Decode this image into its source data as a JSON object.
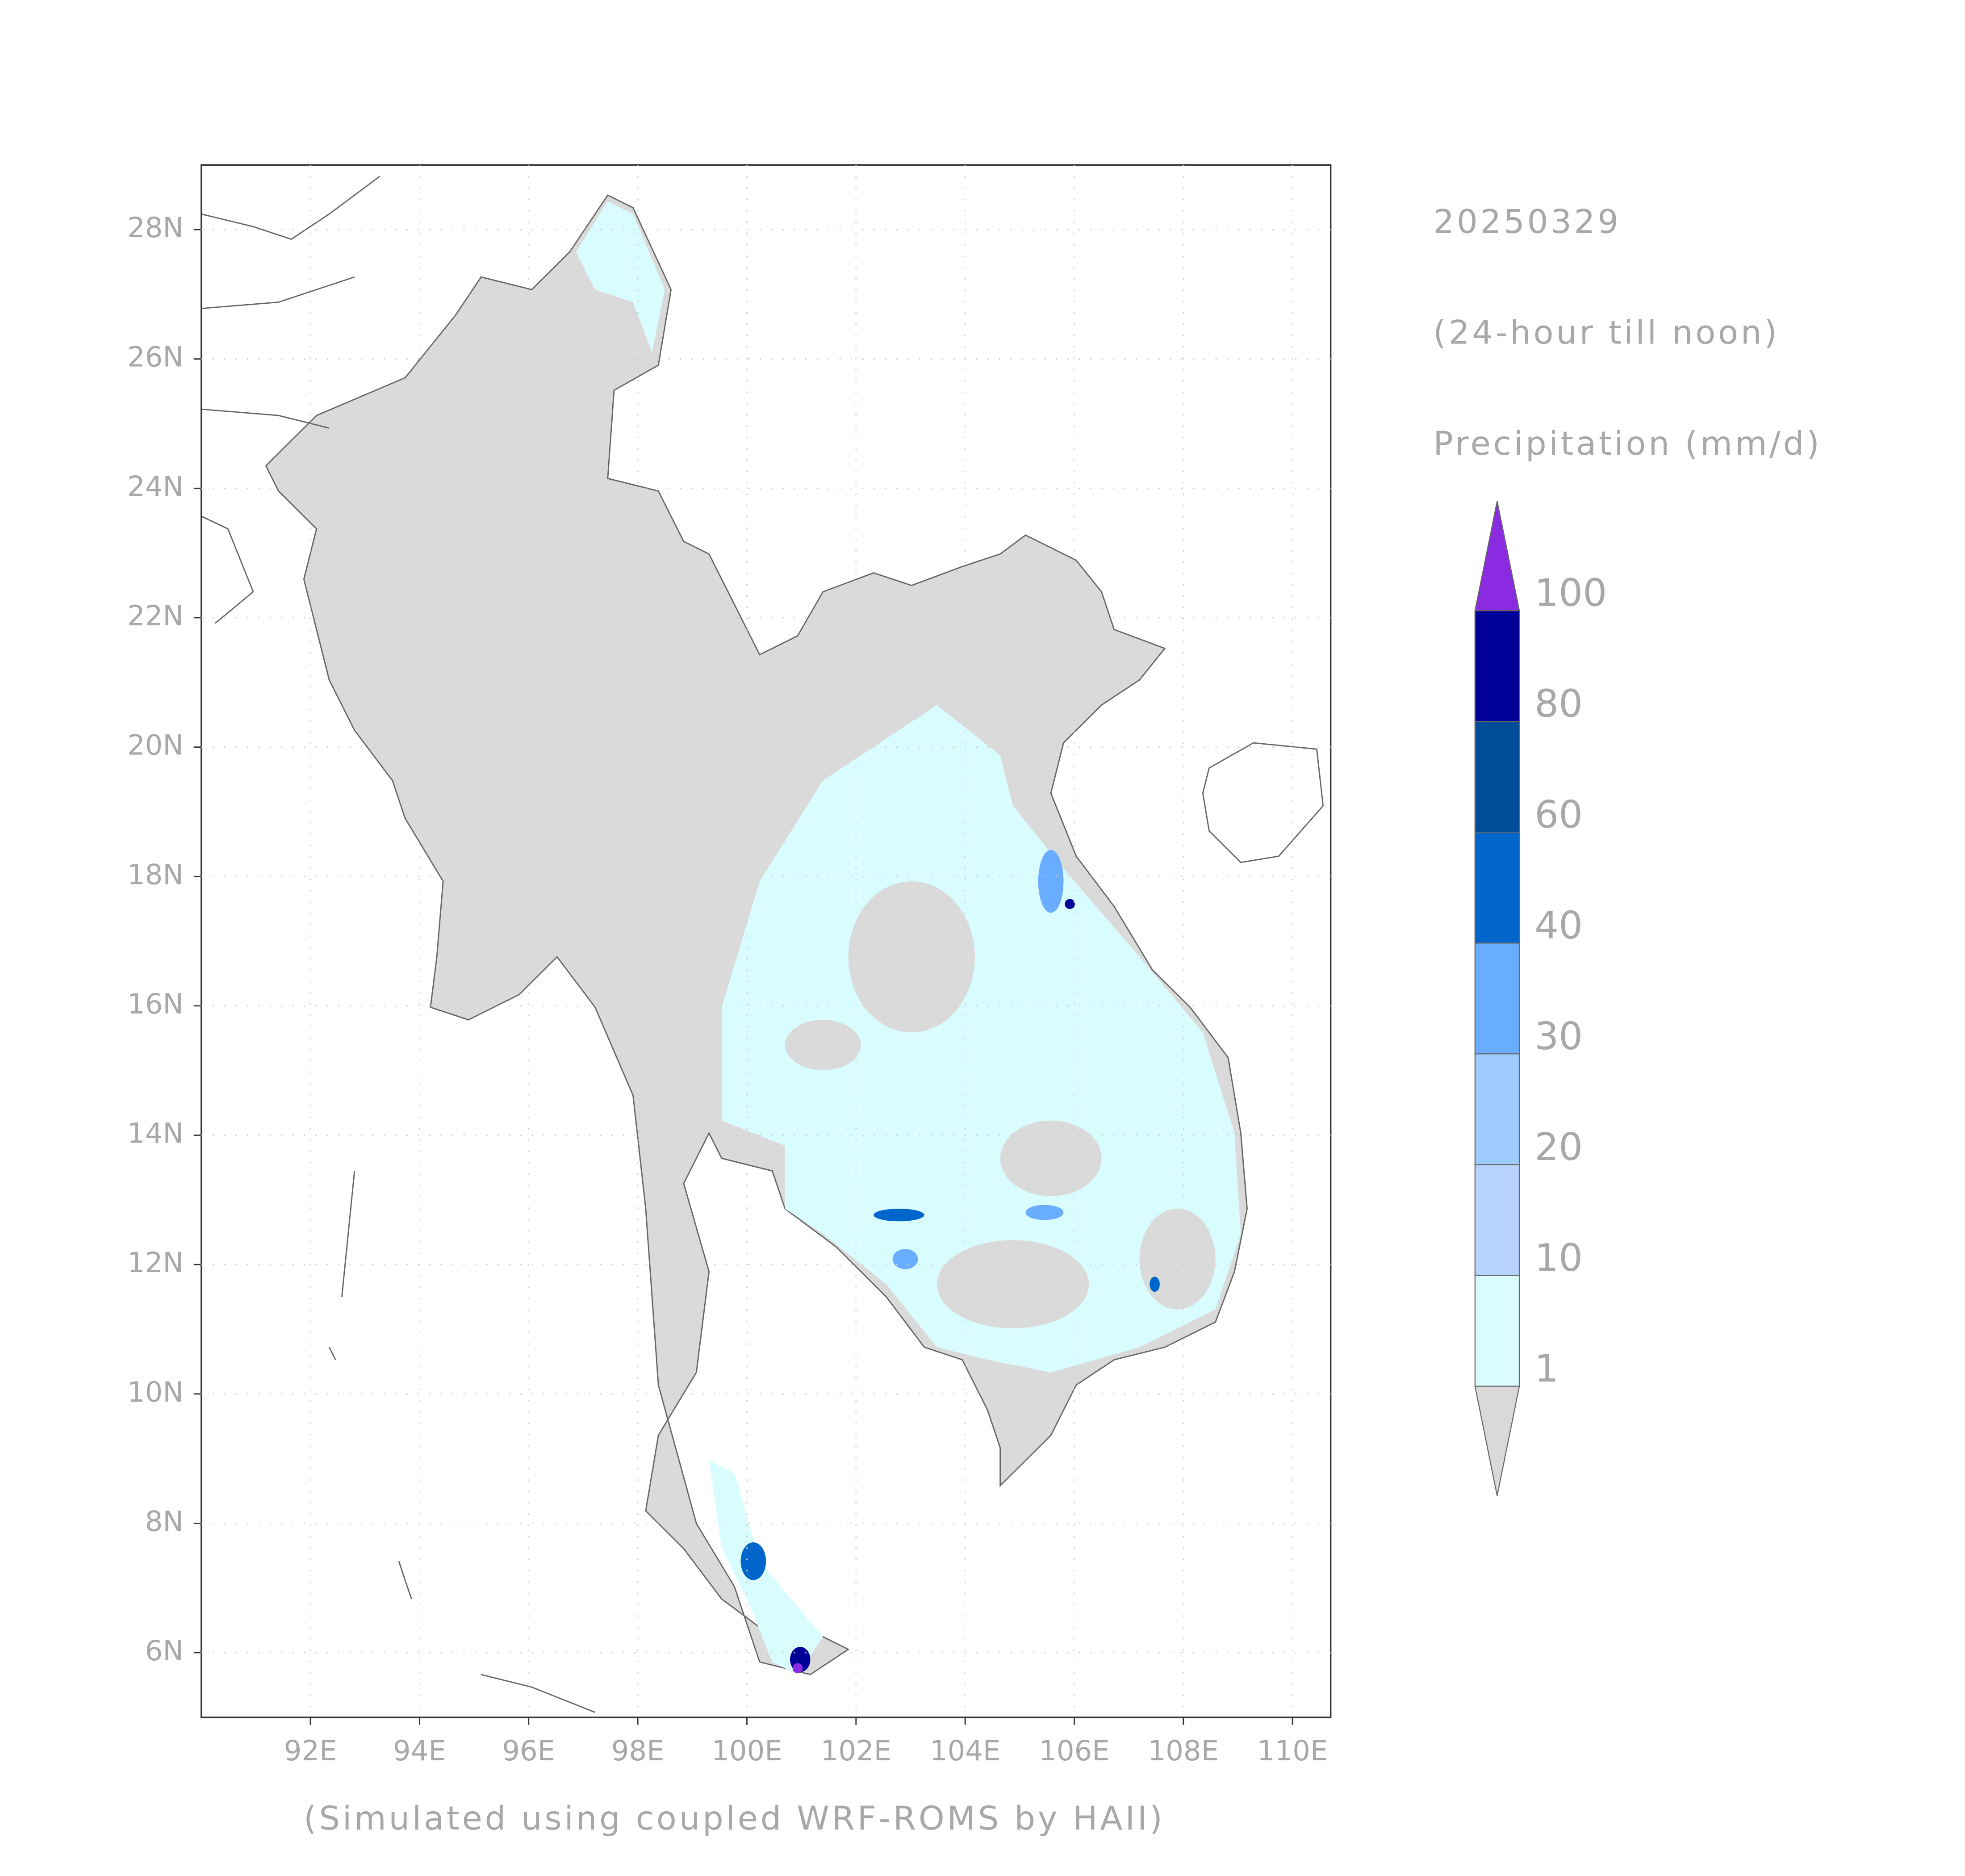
{
  "date": "20250329",
  "period": "(24-hour till noon)",
  "variable": "Precipitation (mm/d)",
  "footer": "(Simulated using coupled WRF-ROMS by HAII)",
  "map": {
    "xlim": [
      90,
      110.7
    ],
    "ylim": [
      5,
      29
    ],
    "xticks": [
      {
        "value": 92,
        "label": "92E"
      },
      {
        "value": 94,
        "label": "94E"
      },
      {
        "value": 96,
        "label": "96E"
      },
      {
        "value": 98,
        "label": "98E"
      },
      {
        "value": 100,
        "label": "100E"
      },
      {
        "value": 102,
        "label": "102E"
      },
      {
        "value": 104,
        "label": "104E"
      },
      {
        "value": 106,
        "label": "106E"
      },
      {
        "value": 108,
        "label": "108E"
      },
      {
        "value": 110,
        "label": "110E"
      }
    ],
    "yticks": [
      {
        "value": 6,
        "label": "6N"
      },
      {
        "value": 8,
        "label": "8N"
      },
      {
        "value": 10,
        "label": "10N"
      },
      {
        "value": 12,
        "label": "12N"
      },
      {
        "value": 14,
        "label": "14N"
      },
      {
        "value": 16,
        "label": "16N"
      },
      {
        "value": 18,
        "label": "18N"
      },
      {
        "value": 20,
        "label": "20N"
      },
      {
        "value": 22,
        "label": "22N"
      },
      {
        "value": 24,
        "label": "24N"
      },
      {
        "value": 26,
        "label": "26N"
      },
      {
        "value": 28,
        "label": "28N"
      }
    ],
    "grid": true
  },
  "colorbar": {
    "levels": [
      1,
      10,
      20,
      30,
      40,
      60,
      80,
      100
    ],
    "colors": [
      "#d9fdff",
      "#b7d3ff",
      "#9dcbff",
      "#68adff",
      "#0066cc",
      "#004c99",
      "#000099"
    ],
    "under_color": "#d9d9d9",
    "over_color": "#8a2be2"
  }
}
